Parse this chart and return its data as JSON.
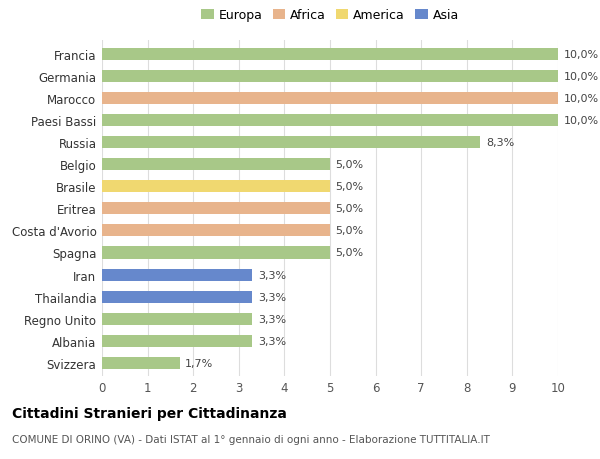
{
  "categories": [
    "Francia",
    "Germania",
    "Marocco",
    "Paesi Bassi",
    "Russia",
    "Belgio",
    "Brasile",
    "Eritrea",
    "Costa d'Avorio",
    "Spagna",
    "Iran",
    "Thailandia",
    "Regno Unito",
    "Albania",
    "Svizzera"
  ],
  "values": [
    10.0,
    10.0,
    10.0,
    10.0,
    8.3,
    5.0,
    5.0,
    5.0,
    5.0,
    5.0,
    3.3,
    3.3,
    3.3,
    3.3,
    1.7
  ],
  "continent": [
    "Europa",
    "Europa",
    "Africa",
    "Europa",
    "Europa",
    "Europa",
    "America",
    "Africa",
    "Africa",
    "Europa",
    "Asia",
    "Asia",
    "Europa",
    "Europa",
    "Europa"
  ],
  "colors": {
    "Europa": "#a8c888",
    "Africa": "#e8b48c",
    "America": "#f0d870",
    "Asia": "#6688cc"
  },
  "legend_order": [
    "Europa",
    "Africa",
    "America",
    "Asia"
  ],
  "labels": [
    "10,0%",
    "10,0%",
    "10,0%",
    "10,0%",
    "8,3%",
    "5,0%",
    "5,0%",
    "5,0%",
    "5,0%",
    "5,0%",
    "3,3%",
    "3,3%",
    "3,3%",
    "3,3%",
    "1,7%"
  ],
  "xlim": [
    0,
    10
  ],
  "xticks": [
    0,
    1,
    2,
    3,
    4,
    5,
    6,
    7,
    8,
    9,
    10
  ],
  "title": "Cittadini Stranieri per Cittadinanza",
  "subtitle": "COMUNE DI ORINO (VA) - Dati ISTAT al 1° gennaio di ogni anno - Elaborazione TUTTITALIA.IT",
  "bar_height": 0.55,
  "background_color": "#ffffff",
  "grid_color": "#dddddd",
  "label_fontsize": 8,
  "ytick_fontsize": 8.5,
  "xtick_fontsize": 8.5,
  "title_fontsize": 10,
  "subtitle_fontsize": 7.5
}
